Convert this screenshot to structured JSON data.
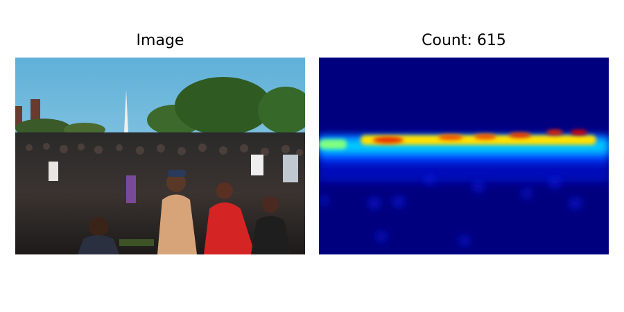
{
  "figure": {
    "left_title": "Image",
    "right_title": "Count: 615"
  },
  "colors": {
    "heatmap_background": "#00007f",
    "heatmap_hot": "#d40000",
    "sky": "#6cb4d8"
  }
}
